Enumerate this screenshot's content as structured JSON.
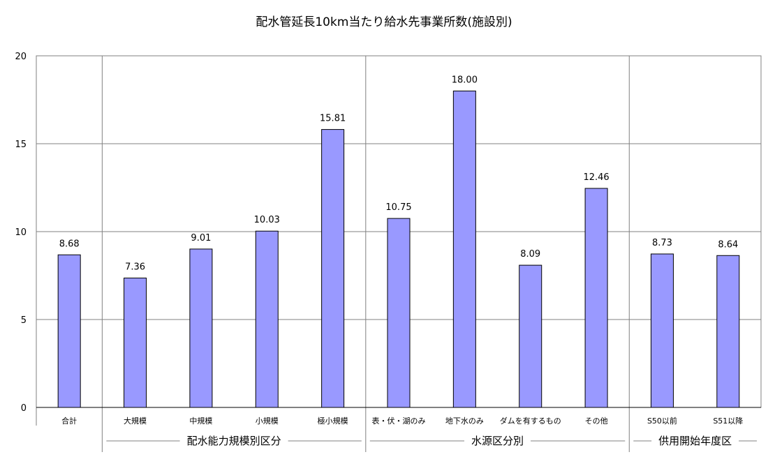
{
  "chart_data": {
    "type": "bar",
    "title": "配水管延長10km当たり給水先事業所数(施設別)",
    "xlabel": "",
    "ylabel": "",
    "ylim": [
      0,
      20
    ],
    "yticks": [
      0,
      5,
      10,
      15,
      20
    ],
    "grid": true,
    "legend": "none",
    "bar_color": "#9999ff",
    "bar_stroke": "#000000",
    "categories": [
      "合計",
      "大規模",
      "中規模",
      "小規模",
      "極小規模",
      "表・伏・湖のみ",
      "地下水のみ",
      "ダムを有するもの",
      "その他",
      "S50以前",
      "S51以降"
    ],
    "values": [
      8.68,
      7.36,
      9.01,
      10.03,
      15.81,
      10.75,
      18.0,
      8.09,
      12.46,
      8.73,
      8.64
    ],
    "value_labels": [
      "8.68",
      "7.36",
      "9.01",
      "10.03",
      "15.81",
      "10.75",
      "18.00",
      "8.09",
      "12.46",
      "8.73",
      "8.64"
    ],
    "groups": [
      {
        "label": "配水能力規模別区分",
        "first": 1,
        "last": 4
      },
      {
        "label": "水源区分別",
        "first": 5,
        "last": 8
      },
      {
        "label": "供用開始年度区",
        "first": 9,
        "last": 10
      }
    ]
  }
}
